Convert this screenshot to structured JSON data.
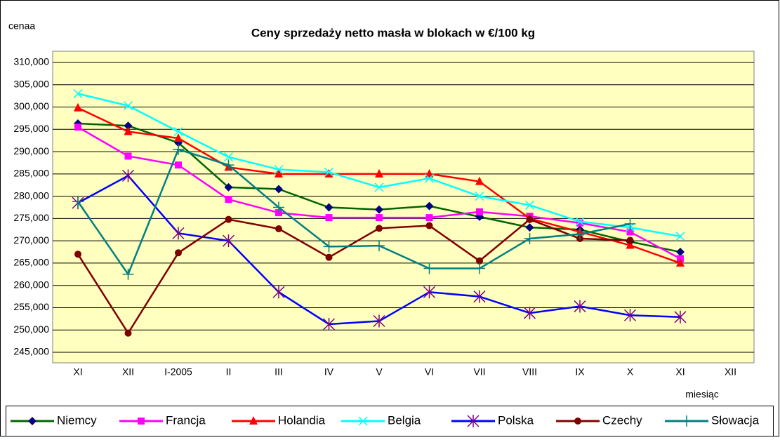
{
  "chart_data": {
    "type": "line",
    "title": "Ceny sprzedaży netto masła w blokach w €/100 kg",
    "y_label": "cenaa",
    "x_label": "miesiąc",
    "categories": [
      "XI",
      "XII",
      "I-2005",
      "II",
      "III",
      "IV",
      "V",
      "VI",
      "VII",
      "VIII",
      "IX",
      "X",
      "XI",
      "XII"
    ],
    "ylim": [
      245000,
      310000
    ],
    "yticks": [
      {
        "value": 245000,
        "label": "245,000"
      },
      {
        "value": 250000,
        "label": "250,000"
      },
      {
        "value": 255000,
        "label": "255,000"
      },
      {
        "value": 260000,
        "label": "260,000"
      },
      {
        "value": 265000,
        "label": "265,000"
      },
      {
        "value": 270000,
        "label": "270,000"
      },
      {
        "value": 275000,
        "label": "275,000"
      },
      {
        "value": 280000,
        "label": "280,000"
      },
      {
        "value": 285000,
        "label": "285,000"
      },
      {
        "value": 290000,
        "label": "290,000"
      },
      {
        "value": 295000,
        "label": "295,000"
      },
      {
        "value": 300000,
        "label": "300,000"
      },
      {
        "value": 305000,
        "label": "305,000"
      },
      {
        "value": 310000,
        "label": "310,000"
      }
    ],
    "grid": true,
    "legend": "bottom",
    "series": [
      {
        "name": "Niemcy",
        "color": "#006400",
        "marker": "diamond",
        "marker_color": "#000080",
        "values": [
          296300,
          295800,
          292000,
          282000,
          281600,
          277500,
          277000,
          277800,
          275400,
          273000,
          272500,
          269800,
          267500,
          null
        ]
      },
      {
        "name": "Francja",
        "color": "#ff00ff",
        "marker": "square",
        "marker_color": "#ff00ff",
        "values": [
          295500,
          289000,
          287000,
          279300,
          276300,
          275200,
          275200,
          275200,
          276500,
          275500,
          274000,
          272000,
          266000,
          null
        ]
      },
      {
        "name": "Holandia",
        "color": "#ff0000",
        "marker": "triangle",
        "marker_color": "#ff0000",
        "values": [
          299800,
          294500,
          293000,
          286500,
          285000,
          285000,
          285000,
          285000,
          283300,
          275000,
          272000,
          269000,
          265000,
          null
        ]
      },
      {
        "name": "Belgia",
        "color": "#00ffff",
        "marker": "x",
        "marker_color": "#00ffff",
        "values": [
          303000,
          300300,
          294500,
          288800,
          286000,
          285400,
          282000,
          284000,
          280000,
          278000,
          274300,
          273000,
          271000,
          null
        ]
      },
      {
        "name": "Polska",
        "color": "#0000ff",
        "marker": "star",
        "marker_color": "#800080",
        "values": [
          278500,
          284600,
          271700,
          270000,
          258500,
          251300,
          252000,
          258500,
          257500,
          253800,
          255300,
          253300,
          252900,
          null
        ]
      },
      {
        "name": "Czechy",
        "color": "#800000",
        "marker": "circle",
        "marker_color": "#800000",
        "values": [
          267000,
          249300,
          267300,
          274800,
          272700,
          266300,
          272800,
          273400,
          265500,
          274800,
          270500,
          270100,
          null,
          null
        ]
      },
      {
        "name": "Słowacja",
        "color": "#008080",
        "marker": "plus",
        "marker_color": "#008080",
        "values": [
          278800,
          262500,
          290500,
          287000,
          277500,
          268700,
          268900,
          263800,
          263800,
          270500,
          271500,
          273800,
          null,
          null
        ]
      }
    ]
  }
}
